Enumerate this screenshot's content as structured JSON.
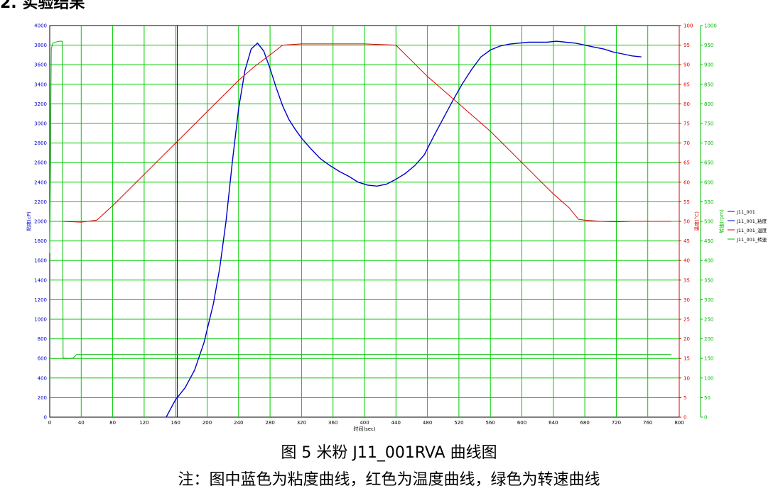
{
  "heading": "2. 实验结果",
  "caption": "图 5  米粉 J11_001RVA 曲线图",
  "note": "注：图中蓝色为粘度曲线，红色为温度曲线，绿色为转速曲线",
  "colors": {
    "viscosity": "#0000cc",
    "temperature": "#dd0000",
    "speed": "#00bb00",
    "grid": "#00cc00"
  },
  "chart_data": {
    "type": "line",
    "xlabel": "时间(sec)",
    "ylabel_left": "粘度(cP)",
    "ylabel_right1": "温度(°C)",
    "ylabel_right2": "转速(rpm)",
    "xlim": [
      0,
      800
    ],
    "ylim_left": [
      0,
      4000
    ],
    "ylim_right1": [
      0,
      100
    ],
    "ylim_right2": [
      0,
      1000
    ],
    "x_ticks": [
      "0",
      "40",
      "80",
      "120",
      "160",
      "200",
      "240",
      "280",
      "320",
      "360",
      "400",
      "440",
      "480",
      "520",
      "560",
      "600",
      "640",
      "680",
      "720",
      "760",
      "800"
    ],
    "y_ticks_left": [
      "0",
      "200",
      "400",
      "600",
      "800",
      "1000",
      "1200",
      "1400",
      "1600",
      "1800",
      "2000",
      "2200",
      "2400",
      "2600",
      "2800",
      "3000",
      "3200",
      "3400",
      "3600",
      "3800",
      "4000"
    ],
    "y_ticks_right1": [
      "0",
      "5",
      "10",
      "15",
      "20",
      "25",
      "30",
      "35",
      "40",
      "45",
      "50",
      "55",
      "60",
      "65",
      "70",
      "75",
      "80",
      "85",
      "90",
      "95",
      "100"
    ],
    "y_ticks_right2": [
      "0",
      "50",
      "100",
      "150",
      "200",
      "250",
      "300",
      "350",
      "400",
      "450",
      "500",
      "550",
      "600",
      "650",
      "700",
      "750",
      "800",
      "850",
      "900",
      "950",
      "1000"
    ],
    "marker_x": 162,
    "grid": true,
    "legend_position": "right",
    "legend": [
      "J11_001",
      "J11_001_粘度",
      "J11_001_温度",
      "J11_001_转速"
    ],
    "series": [
      {
        "name": "J11_001_粘度",
        "axis": "left",
        "color": "#0000cc",
        "x": [
          148,
          152,
          160,
          172,
          184,
          196,
          208,
          216,
          224,
          232,
          240,
          248,
          256,
          264,
          272,
          280,
          288,
          296,
          304,
          312,
          320,
          332,
          344,
          356,
          368,
          380,
          392,
          404,
          416,
          428,
          440,
          452,
          464,
          476,
          488,
          500,
          512,
          524,
          536,
          548,
          560,
          572,
          584,
          596,
          608,
          620,
          632,
          644,
          656,
          668,
          680,
          692,
          704,
          716,
          728,
          740,
          752
        ],
        "values": [
          0,
          60,
          180,
          300,
          480,
          760,
          1160,
          1520,
          2000,
          2600,
          3150,
          3540,
          3760,
          3820,
          3740,
          3560,
          3360,
          3180,
          3040,
          2940,
          2850,
          2740,
          2640,
          2570,
          2510,
          2460,
          2400,
          2370,
          2360,
          2380,
          2430,
          2490,
          2570,
          2680,
          2870,
          3050,
          3230,
          3400,
          3550,
          3680,
          3750,
          3790,
          3810,
          3820,
          3830,
          3830,
          3830,
          3840,
          3830,
          3820,
          3800,
          3780,
          3760,
          3730,
          3710,
          3690,
          3680
        ]
      },
      {
        "name": "J11_001_温度",
        "axis": "right1",
        "color": "#dd0000",
        "x": [
          16,
          40,
          60,
          80,
          100,
          120,
          140,
          160,
          180,
          200,
          220,
          240,
          260,
          280,
          296,
          320,
          360,
          400,
          440,
          460,
          480,
          500,
          520,
          540,
          560,
          580,
          600,
          620,
          640,
          660,
          672,
          680,
          700,
          720,
          740,
          760,
          790
        ],
        "values": [
          50,
          49.8,
          50.3,
          54,
          58,
          62,
          66,
          70,
          74,
          78,
          82,
          86,
          89.5,
          92.5,
          95,
          95.3,
          95.3,
          95.3,
          95,
          91,
          87,
          83.5,
          80,
          76.5,
          73,
          69,
          65,
          61,
          57,
          53.5,
          50.5,
          50.3,
          50,
          49.9,
          50,
          50,
          50
        ]
      },
      {
        "name": "J11_001_转速",
        "axis": "right2",
        "color": "#00bb00",
        "x": [
          0,
          2,
          4,
          8,
          12,
          16,
          17,
          20,
          24,
          30,
          34,
          40,
          80,
          120,
          160,
          200,
          240,
          280,
          320,
          360,
          400,
          440,
          480,
          520,
          560,
          600,
          640,
          680,
          720,
          760,
          790
        ],
        "values": [
          420,
          940,
          955,
          958,
          960,
          960,
          152,
          150,
          150,
          151,
          160,
          160,
          160,
          160,
          160,
          160,
          160,
          160,
          160,
          160,
          160,
          160,
          160,
          160,
          160,
          160,
          160,
          160,
          160,
          160,
          160
        ]
      }
    ]
  }
}
